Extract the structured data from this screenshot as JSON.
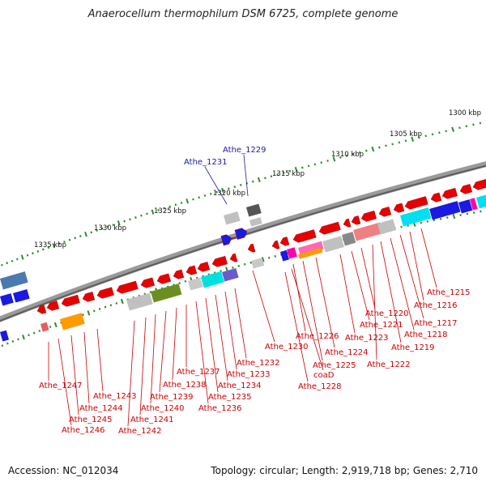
{
  "title": "Anaerocellum thermophilum DSM 6725, complete genome",
  "footer": {
    "accession_label": "Accession:",
    "accession": "NC_012034",
    "topology_label": "Topology:",
    "topology": "circular",
    "length_label": "Length:",
    "length": "2,919,718 bp",
    "genes_label": "Genes:",
    "genes": "2,710"
  },
  "scale_ticks": [
    "1300 kbp",
    "1305 kbp",
    "1310 kbp",
    "1315 kbp",
    "1320 kbp",
    "1325 kbp",
    "1330 kbp",
    "1335 kbp"
  ],
  "genes_red": [
    "Athe_1215",
    "Athe_1216",
    "Athe_1217",
    "Athe_1218",
    "Athe_1219",
    "Athe_1220",
    "Athe_1221",
    "Athe_1222",
    "Athe_1223",
    "Athe_1224",
    "Athe_1225",
    "Athe_1226",
    "Athe_1228",
    "coaD",
    "Athe_1230",
    "Athe_1232",
    "Athe_1233",
    "Athe_1234",
    "Athe_1235",
    "Athe_1236",
    "Athe_1237",
    "Athe_1238",
    "Athe_1239",
    "Athe_1240",
    "Athe_1241",
    "Athe_1242",
    "Athe_1243",
    "Athe_1244",
    "Athe_1245",
    "Athe_1246",
    "Athe_1247"
  ],
  "genes_blue": [
    "Athe_1229",
    "Athe_1231"
  ],
  "colors": {
    "gene_forward": "#e60000",
    "label_red": "#cc0000",
    "label_blue": "#1a1aaa",
    "backbone": "#7a7a7a",
    "scale_dot": "#2e8b2e"
  }
}
